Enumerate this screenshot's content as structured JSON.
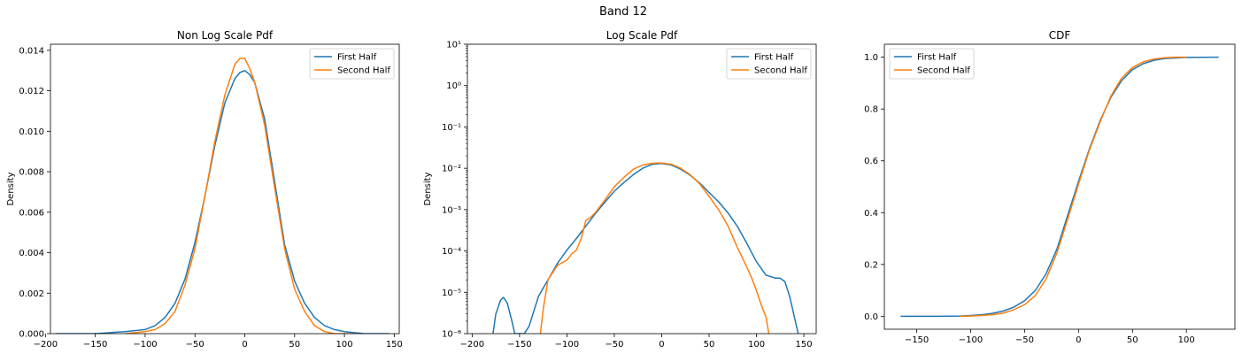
{
  "figure_title": "Band 12",
  "colors": {
    "first_half": "#1f77b4",
    "second_half": "#ff7f0e"
  },
  "chart_data": [
    {
      "type": "line",
      "title": "Non Log Scale Pdf",
      "xlabel": "",
      "ylabel": "Density",
      "xlim": [
        -195,
        155
      ],
      "ylim": [
        0,
        0.0143
      ],
      "yscale": "linear",
      "xticks": [
        -200,
        -150,
        -100,
        -50,
        0,
        50,
        100,
        150
      ],
      "yticks": [
        0.0,
        0.002,
        0.004,
        0.006,
        0.008,
        0.01,
        0.012,
        0.014
      ],
      "ytick_labels": [
        "0.000",
        "0.002",
        "0.004",
        "0.006",
        "0.008",
        "0.010",
        "0.012",
        "0.014"
      ],
      "legend": "top-right",
      "series": [
        {
          "name": "First Half",
          "x": [
            -190,
            -150,
            -120,
            -100,
            -90,
            -80,
            -70,
            -60,
            -50,
            -40,
            -30,
            -20,
            -10,
            -5,
            0,
            5,
            10,
            20,
            30,
            40,
            50,
            60,
            70,
            80,
            90,
            100,
            120,
            145
          ],
          "y": [
            0.0,
            0.0,
            0.0001,
            0.0002,
            0.0004,
            0.0008,
            0.0015,
            0.0027,
            0.0045,
            0.0068,
            0.0093,
            0.0114,
            0.0126,
            0.0129,
            0.013,
            0.0128,
            0.0124,
            0.0106,
            0.0075,
            0.0044,
            0.0026,
            0.0015,
            0.0008,
            0.0004,
            0.0002,
            0.0001,
            0.0,
            0.0
          ]
        },
        {
          "name": "Second Half",
          "x": [
            -120,
            -100,
            -90,
            -80,
            -70,
            -60,
            -50,
            -40,
            -30,
            -20,
            -10,
            -5,
            0,
            5,
            10,
            20,
            30,
            40,
            50,
            60,
            70,
            80,
            90,
            100,
            110
          ],
          "y": [
            0.0,
            0.0001,
            0.0002,
            0.0005,
            0.0011,
            0.0024,
            0.0042,
            0.0068,
            0.0095,
            0.0118,
            0.0133,
            0.0136,
            0.0136,
            0.0131,
            0.0124,
            0.0103,
            0.0072,
            0.0042,
            0.0022,
            0.0011,
            0.0004,
            0.0001,
            0.0,
            0.0,
            0.0
          ]
        }
      ]
    },
    {
      "type": "line",
      "title": "Log Scale Pdf",
      "xlabel": "",
      "ylabel": "Density",
      "xlim": [
        -205,
        163
      ],
      "ylim": [
        1e-06,
        10
      ],
      "yscale": "log",
      "xticks": [
        -200,
        -150,
        -100,
        -50,
        0,
        50,
        100,
        150
      ],
      "yticks": [
        1e-06,
        1e-05,
        0.0001,
        0.001,
        0.01,
        0.1,
        1,
        10
      ],
      "ytick_labels": [
        "10⁻⁶",
        "10⁻⁵",
        "10⁻⁴",
        "10⁻³",
        "10⁻²",
        "10⁻¹",
        "10⁰",
        "10¹"
      ],
      "legend": "top-right",
      "series": [
        {
          "name": "First Half",
          "x": [
            -178,
            -175,
            -170,
            -167,
            -163,
            -158,
            -155,
            -150,
            -145,
            -140,
            -130,
            -120,
            -110,
            -100,
            -90,
            -80,
            -70,
            -60,
            -50,
            -40,
            -30,
            -20,
            -10,
            0,
            10,
            20,
            30,
            40,
            50,
            60,
            70,
            80,
            90,
            100,
            110,
            120,
            125,
            130,
            135,
            140,
            144
          ],
          "y": [
            1e-06,
            3e-06,
            6.5e-06,
            7.5e-06,
            5.5e-06,
            2e-06,
            1e-06,
            1e-06,
            1e-06,
            1.5e-06,
            8e-06,
            2e-05,
            5e-05,
            0.000105,
            0.0002,
            0.0004,
            0.0008,
            0.0015,
            0.0028,
            0.0045,
            0.007,
            0.01,
            0.0125,
            0.013,
            0.012,
            0.0095,
            0.0068,
            0.0044,
            0.0026,
            0.00155,
            0.00083,
            0.00039,
            0.00015,
            5.5e-05,
            2.6e-05,
            2.2e-05,
            2.2e-05,
            1.8e-05,
            8e-06,
            2.5e-06,
            1e-06
          ]
        },
        {
          "name": "Second Half",
          "x": [
            -128,
            -125,
            -120,
            -110,
            -100,
            -95,
            -90,
            -85,
            -80,
            -75,
            -70,
            -60,
            -50,
            -40,
            -30,
            -20,
            -10,
            0,
            10,
            20,
            30,
            40,
            50,
            60,
            70,
            80,
            90,
            95,
            100,
            105,
            110,
            113
          ],
          "y": [
            1e-06,
            4e-06,
            2e-05,
            4.5e-05,
            6e-05,
            8.5e-05,
            0.000105,
            0.0002,
            0.00055,
            0.00065,
            0.00085,
            0.0017,
            0.0036,
            0.006,
            0.0095,
            0.012,
            0.0132,
            0.0135,
            0.0125,
            0.01,
            0.007,
            0.0042,
            0.0021,
            0.001,
            0.0004,
            0.00012,
            4e-05,
            2.2e-05,
            1.1e-05,
            5e-06,
            2.5e-06,
            1e-06
          ]
        }
      ]
    },
    {
      "type": "line",
      "title": "CDF",
      "xlabel": "",
      "ylabel": "",
      "xlim": [
        -180,
        145
      ],
      "ylim": [
        -0.05,
        1.05
      ],
      "yscale": "linear",
      "xticks": [
        -150,
        -100,
        -50,
        0,
        50,
        100
      ],
      "yticks": [
        0.0,
        0.2,
        0.4,
        0.6,
        0.8,
        1.0
      ],
      "ytick_labels": [
        "0.0",
        "0.2",
        "0.4",
        "0.6",
        "0.8",
        "1.0"
      ],
      "legend": "top-left",
      "series": [
        {
          "name": "First Half",
          "x": [
            -165,
            -130,
            -110,
            -100,
            -90,
            -80,
            -70,
            -60,
            -50,
            -40,
            -30,
            -20,
            -10,
            0,
            10,
            20,
            30,
            40,
            50,
            60,
            70,
            80,
            100,
            130
          ],
          "y": [
            0.0,
            0.0,
            0.001,
            0.003,
            0.006,
            0.011,
            0.02,
            0.035,
            0.06,
            0.1,
            0.165,
            0.26,
            0.39,
            0.52,
            0.645,
            0.755,
            0.845,
            0.91,
            0.952,
            0.975,
            0.988,
            0.995,
            0.999,
            1.0
          ]
        },
        {
          "name": "Second Half",
          "x": [
            -110,
            -100,
            -90,
            -80,
            -70,
            -60,
            -50,
            -40,
            -30,
            -20,
            -10,
            0,
            10,
            20,
            30,
            40,
            50,
            60,
            70,
            80,
            90,
            100
          ],
          "y": [
            0.0,
            0.001,
            0.003,
            0.006,
            0.012,
            0.025,
            0.045,
            0.08,
            0.145,
            0.245,
            0.375,
            0.51,
            0.64,
            0.75,
            0.85,
            0.92,
            0.96,
            0.982,
            0.993,
            0.998,
            1.0,
            1.0
          ]
        }
      ]
    }
  ]
}
